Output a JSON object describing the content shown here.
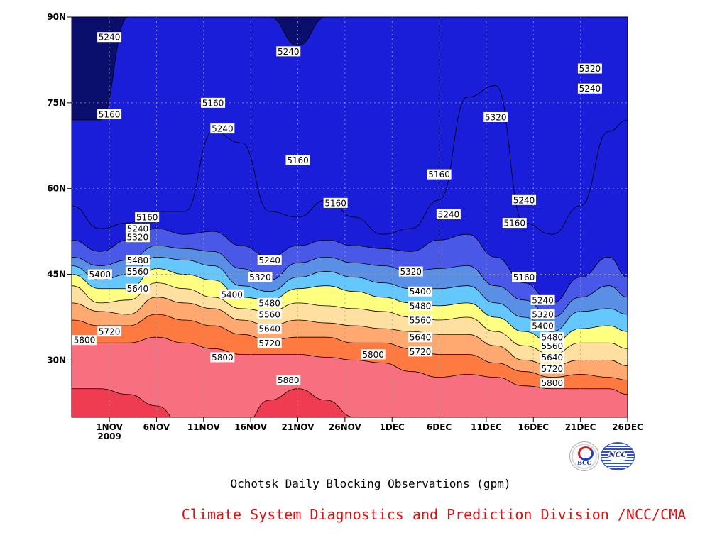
{
  "chart_data": {
    "type": "heatmap",
    "title": "Ochotsk Daily Blocking Observations (gpm)",
    "xlabel": "",
    "ylabel": "",
    "x_ticks": [
      "1NOV",
      "6NOV",
      "11NOV",
      "16NOV",
      "21NOV",
      "26NOV",
      "1DEC",
      "6DEC",
      "11DEC",
      "16DEC",
      "21DEC",
      "26DEC"
    ],
    "x_year_label": "2009",
    "y_ticks": [
      "30N",
      "45N",
      "60N",
      "75N",
      "90N"
    ],
    "y_range": [
      20,
      90
    ],
    "x_range": [
      "2009-10-28",
      "2009-12-26"
    ],
    "grid": true,
    "contour_interval": 80,
    "levels": [
      5160,
      5240,
      5320,
      5400,
      5480,
      5560,
      5640,
      5720,
      5800,
      5880
    ],
    "level_colors": {
      "below_5160": "#0a0f6e",
      "5160": "#1a1ed8",
      "5240": "#4a58e8",
      "5320": "#5a8fe6",
      "5400": "#64c8ff",
      "5480": "#ffff80",
      "5560": "#ffe0a0",
      "5640": "#ffa870",
      "5720": "#ff7a40",
      "5800": "#f87080",
      "5880": "#ef3c50"
    },
    "contour_labels": [
      {
        "text": "5240",
        "date": "2009-11-01",
        "lat": 86.5
      },
      {
        "text": "5240",
        "date": "2009-11-20",
        "lat": 84.0
      },
      {
        "text": "5160",
        "date": "2009-11-01",
        "lat": 73.0
      },
      {
        "text": "5160",
        "date": "2009-11-12",
        "lat": 75.0
      },
      {
        "text": "5240",
        "date": "2009-11-13",
        "lat": 70.5
      },
      {
        "text": "5160",
        "date": "2009-11-21",
        "lat": 65.0
      },
      {
        "text": "5160",
        "date": "2009-11-25",
        "lat": 57.5
      },
      {
        "text": "5160",
        "date": "2009-12-06",
        "lat": 62.5
      },
      {
        "text": "5240",
        "date": "2009-12-07",
        "lat": 55.5
      },
      {
        "text": "5320",
        "date": "2009-12-12",
        "lat": 72.5
      },
      {
        "text": "5240",
        "date": "2009-12-15",
        "lat": 58.0
      },
      {
        "text": "5160",
        "date": "2009-12-14",
        "lat": 54.0
      },
      {
        "text": "5320",
        "date": "2009-12-22",
        "lat": 81.0
      },
      {
        "text": "5240",
        "date": "2009-12-22",
        "lat": 77.5
      },
      {
        "text": "5160",
        "date": "2009-11-05",
        "lat": 55.0
      },
      {
        "text": "5240",
        "date": "2009-11-04",
        "lat": 53.0
      },
      {
        "text": "5320",
        "date": "2009-11-04",
        "lat": 51.5
      },
      {
        "text": "5480",
        "date": "2009-11-04",
        "lat": 47.5
      },
      {
        "text": "5560",
        "date": "2009-11-04",
        "lat": 45.5
      },
      {
        "text": "5640",
        "date": "2009-11-04",
        "lat": 42.5
      },
      {
        "text": "5400",
        "date": "2009-10-31",
        "lat": 45.0
      },
      {
        "text": "5720",
        "date": "2009-11-01",
        "lat": 35.0
      },
      {
        "text": "5800",
        "date": "2009-10-28",
        "lat": 33.5
      },
      {
        "text": "5240",
        "date": "2009-11-18",
        "lat": 47.5
      },
      {
        "text": "5320",
        "date": "2009-11-17",
        "lat": 44.5
      },
      {
        "text": "5400",
        "date": "2009-11-14",
        "lat": 41.5
      },
      {
        "text": "5480",
        "date": "2009-11-18",
        "lat": 40.0
      },
      {
        "text": "5560",
        "date": "2009-11-18",
        "lat": 38.0
      },
      {
        "text": "5640",
        "date": "2009-11-18",
        "lat": 35.5
      },
      {
        "text": "5720",
        "date": "2009-11-18",
        "lat": 33.0
      },
      {
        "text": "5800",
        "date": "2009-11-13",
        "lat": 30.5
      },
      {
        "text": "5880",
        "date": "2009-11-20",
        "lat": 26.5
      },
      {
        "text": "5800",
        "date": "2009-11-29",
        "lat": 31.0
      },
      {
        "text": "5320",
        "date": "2009-12-03",
        "lat": 45.5
      },
      {
        "text": "5400",
        "date": "2009-12-04",
        "lat": 42.0
      },
      {
        "text": "5480",
        "date": "2009-12-04",
        "lat": 39.5
      },
      {
        "text": "5560",
        "date": "2009-12-04",
        "lat": 37.0
      },
      {
        "text": "5640",
        "date": "2009-12-04",
        "lat": 34.0
      },
      {
        "text": "5720",
        "date": "2009-12-04",
        "lat": 31.5
      },
      {
        "text": "5160",
        "date": "2009-12-15",
        "lat": 44.5
      },
      {
        "text": "5240",
        "date": "2009-12-17",
        "lat": 40.5
      },
      {
        "text": "5320",
        "date": "2009-12-17",
        "lat": 38.0
      },
      {
        "text": "5400",
        "date": "2009-12-17",
        "lat": 36.0
      },
      {
        "text": "5480",
        "date": "2009-12-18",
        "lat": 34.0
      },
      {
        "text": "5560",
        "date": "2009-12-18",
        "lat": 32.5
      },
      {
        "text": "5640",
        "date": "2009-12-18",
        "lat": 30.5
      },
      {
        "text": "5720",
        "date": "2009-12-18",
        "lat": 28.5
      },
      {
        "text": "5800",
        "date": "2009-12-18",
        "lat": 26.0
      }
    ]
  },
  "captions": {
    "title": "Ochotsk Daily Blocking Observations (gpm)",
    "credit": "Climate System Diagnostics and Prediction Division /NCC/CMA",
    "credit_color": "#e01010"
  },
  "logos": {
    "left": {
      "icon": "bcc-logo-icon",
      "text": "BCC"
    },
    "right": {
      "icon": "ncc-logo-icon",
      "text": "NCC"
    }
  }
}
